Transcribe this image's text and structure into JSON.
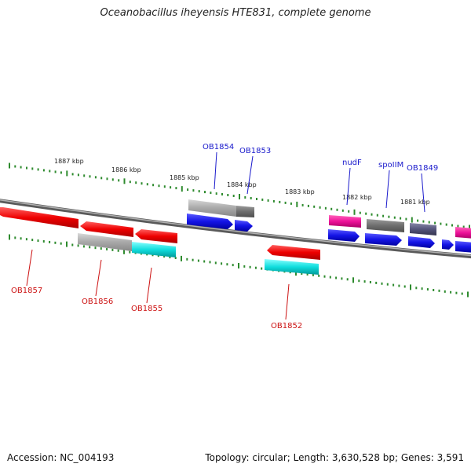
{
  "title": "Oceanobacillus iheyensis HTE831, complete genome",
  "footer": {
    "accession": "Accession: NC_004193",
    "summary": "Topology: circular; Length: 3,630,528 bp; Genes: 3,591"
  },
  "colors": {
    "backbone": "#8c8c8c",
    "tick": "#2e8b2e",
    "ruler_text": "#222222",
    "label_blue": "#1a1acc",
    "label_red": "#cc1111",
    "red": "#ee0000",
    "gray": "#a8a8a8",
    "dark_gray": "#6e6e6e",
    "blue": "#1414e6",
    "cyan": "#11dddd",
    "magenta": "#ee1199",
    "slate": "#55557a"
  },
  "scale": {
    "unit": "kbp",
    "labels": [
      "1887 kbp",
      "1886 kbp",
      "1885 kbp",
      "1884 kbp",
      "1883 kbp",
      "1882 kbp",
      "1881 kbp"
    ]
  },
  "genes": [
    {
      "label": "OB1857",
      "strand": "minus",
      "color": "red"
    },
    {
      "label": "OB1856",
      "strand": "minus",
      "color": "red"
    },
    {
      "label": "OB1855",
      "strand": "minus",
      "color": "red"
    },
    {
      "label": "OB1854",
      "strand": "plus",
      "color": "blue"
    },
    {
      "label": "OB1853",
      "strand": "plus",
      "color": "blue"
    },
    {
      "label": "OB1852",
      "strand": "minus",
      "color": "red"
    },
    {
      "label": "nudF",
      "strand": "plus",
      "color": "blue"
    },
    {
      "label": "spoIIM",
      "strand": "plus",
      "color": "blue"
    },
    {
      "label": "OB1849",
      "strand": "plus",
      "color": "blue"
    }
  ]
}
